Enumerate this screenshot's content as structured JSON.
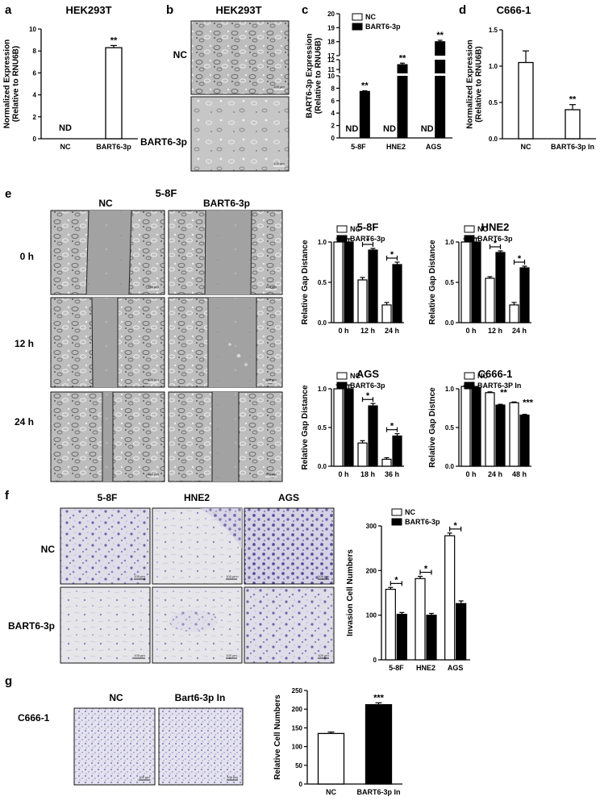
{
  "panels": {
    "a": {
      "label": "a",
      "chart_data": {
        "type": "bar",
        "title": "HEK293T",
        "ylabel": "Normalized Expression\n(Relative to RNU6B)",
        "ylim": [
          0,
          10
        ],
        "yticks": [
          0,
          2,
          4,
          6,
          8,
          10
        ],
        "categories": [
          "NC",
          "BART6-3p"
        ],
        "values": [
          0,
          8.3
        ],
        "errors": [
          0,
          0.2
        ],
        "fills": [
          "#ffffff",
          "#ffffff"
        ],
        "annotations": [
          "ND",
          "**"
        ]
      }
    },
    "b": {
      "label": "b",
      "title": "HEK293T",
      "rows": [
        "NC",
        "BART6-3p"
      ],
      "scale": "100 µm"
    },
    "c": {
      "label": "c",
      "chart_data": {
        "type": "bar",
        "ylabel": "BART6-3p Expression\n(Relative to RNU6B)",
        "broken_axis": true,
        "yticks": [
          0,
          2,
          4,
          6,
          8,
          10,
          11,
          12,
          17,
          18,
          19,
          20
        ],
        "categories": [
          "5-8F",
          "HNE2",
          "AGS"
        ],
        "series": [
          {
            "name": "NC",
            "values": [
              0,
              0,
              0
            ],
            "fill": "#ffffff"
          },
          {
            "name": "BART6-3p",
            "values": [
              7.5,
              11.5,
              18.0
            ],
            "fill": "#000000"
          }
        ],
        "errors": [
          0.1,
          0.15,
          0.1
        ],
        "nd_labels": [
          "ND",
          "ND",
          "ND"
        ],
        "annotations": [
          "**",
          "**",
          "**"
        ]
      }
    },
    "d": {
      "label": "d",
      "chart_data": {
        "type": "bar",
        "title": "C666-1",
        "ylabel": "Normalized Expression\n(Relative to RNU6B)",
        "ylim": [
          0,
          1.5
        ],
        "yticks": [
          "0.0",
          "0.5",
          "1.0",
          "1.5"
        ],
        "categories": [
          "NC",
          "BART6-3p In"
        ],
        "values": [
          1.05,
          0.4
        ],
        "errors": [
          0.16,
          0.07
        ],
        "fills": [
          "#ffffff",
          "#ffffff"
        ],
        "annotations": [
          "",
          "**"
        ]
      }
    },
    "e": {
      "label": "e",
      "title": "5-8F",
      "cols": [
        "NC",
        "BART6-3p"
      ],
      "rows": [
        "0 h",
        "12 h",
        "24 h"
      ],
      "scale": "100 µm",
      "charts": [
        {
          "type": "bar",
          "title": "5-8F",
          "ylabel": "Relative Gap Distance",
          "ylim": [
            0,
            1.0
          ],
          "yticks": [
            "0.0",
            "0.5",
            "1.0"
          ],
          "categories": [
            "0 h",
            "12 h",
            "24 h"
          ],
          "series": [
            {
              "name": "NC",
              "values": [
                1.0,
                0.53,
                0.22
              ],
              "fill": "#ffffff"
            },
            {
              "name": "BART6-3p",
              "values": [
                1.0,
                0.9,
                0.72
              ],
              "fill": "#000000"
            }
          ],
          "errors": [
            [
              0.04,
              0.03,
              0.03
            ],
            [
              0.04,
              0.02,
              0.03
            ]
          ],
          "sig": [
            {
              "cat": 1,
              "text": "*"
            },
            {
              "cat": 2,
              "text": "*"
            }
          ]
        },
        {
          "type": "bar",
          "title": "HNE2",
          "ylabel": "Relative Gap Distance",
          "ylim": [
            0,
            1.0
          ],
          "yticks": [
            "0.0",
            "0.5",
            "1.0"
          ],
          "categories": [
            "0 h",
            "12 h",
            "24 h"
          ],
          "series": [
            {
              "name": "NC",
              "values": [
                1.0,
                0.55,
                0.22
              ],
              "fill": "#ffffff"
            },
            {
              "name": "BART6-3p",
              "values": [
                1.0,
                0.87,
                0.68
              ],
              "fill": "#000000"
            }
          ],
          "errors": [
            [
              0.04,
              0.02,
              0.03
            ],
            [
              0.05,
              0.02,
              0.02
            ]
          ],
          "sig": [
            {
              "cat": 1,
              "text": "*"
            },
            {
              "cat": 2,
              "text": "*"
            }
          ]
        },
        {
          "type": "bar",
          "title": "AGS",
          "ylabel": "Relative Gap Distance",
          "ylim": [
            0,
            1.0
          ],
          "yticks": [
            "0.0",
            "0.5",
            "1.0"
          ],
          "categories": [
            "0 h",
            "18 h",
            "36 h"
          ],
          "series": [
            {
              "name": "NC",
              "values": [
                1.0,
                0.3,
                0.09
              ],
              "fill": "#ffffff"
            },
            {
              "name": "BART6-3p",
              "values": [
                1.0,
                0.78,
                0.39
              ],
              "fill": "#000000"
            }
          ],
          "errors": [
            [
              0.05,
              0.03,
              0.02
            ],
            [
              0.05,
              0.03,
              0.03
            ]
          ],
          "sig": [
            {
              "cat": 1,
              "text": "*"
            },
            {
              "cat": 2,
              "text": "*"
            }
          ]
        },
        {
          "type": "bar",
          "title": "C666-1",
          "ylabel": "Relative Gap Distnce",
          "ylim": [
            0,
            1.0
          ],
          "yticks": [
            "0.0",
            "0.5",
            "1.0"
          ],
          "categories": [
            "0 h",
            "24 h",
            "48 h"
          ],
          "series": [
            {
              "name": "NC",
              "values": [
                1.03,
                0.95,
                0.82
              ],
              "fill": "#ffffff"
            },
            {
              "name": "BART6-3P In",
              "values": [
                1.02,
                0.79,
                0.66
              ],
              "fill": "#000000"
            }
          ],
          "errors": [
            [
              0.01,
              0.01,
              0.01
            ],
            [
              0.01,
              0.01,
              0.01
            ]
          ],
          "sig": [
            {
              "cat": 1,
              "text": "**"
            },
            {
              "cat": 2,
              "text": "***"
            }
          ]
        }
      ]
    },
    "f": {
      "label": "f",
      "cols": [
        "5-8F",
        "HNE2",
        "AGS"
      ],
      "rows": [
        "NC",
        "BART6-3p"
      ],
      "scale": "100 µm",
      "chart_data": {
        "type": "bar",
        "ylabel": "Invasion Cell  Numbers",
        "ylim": [
          0,
          300
        ],
        "yticks": [
          "0",
          "100",
          "200",
          "300"
        ],
        "categories": [
          "5-8F",
          "HNE2",
          "AGS"
        ],
        "series": [
          {
            "name": "NC",
            "values": [
              158,
              182,
              278
            ],
            "fill": "#ffffff"
          },
          {
            "name": "BART6-3p",
            "values": [
              102,
              100,
              126
            ],
            "fill": "#000000"
          }
        ],
        "errors": [
          [
            4,
            5,
            6
          ],
          [
            4,
            4,
            6
          ]
        ],
        "sig": [
          {
            "cat": 0,
            "text": "*"
          },
          {
            "cat": 1,
            "text": "*"
          },
          {
            "cat": 2,
            "text": "*"
          }
        ]
      }
    },
    "g": {
      "label": "g",
      "row": "C666-1",
      "cols": [
        "NC",
        "Bart6-3p In"
      ],
      "scale": "100 µm",
      "chart_data": {
        "type": "bar",
        "ylabel": "Relative Cell Numbers",
        "ylim": [
          0,
          250
        ],
        "yticks": [
          "0",
          "50",
          "100",
          "150",
          "200",
          "250"
        ],
        "categories": [
          "NC",
          "BART6-3p In"
        ],
        "values": [
          135,
          212
        ],
        "errors": [
          4,
          5
        ],
        "fills": [
          "#ffffff",
          "#000000"
        ],
        "annotations": [
          "",
          "***"
        ]
      }
    }
  }
}
